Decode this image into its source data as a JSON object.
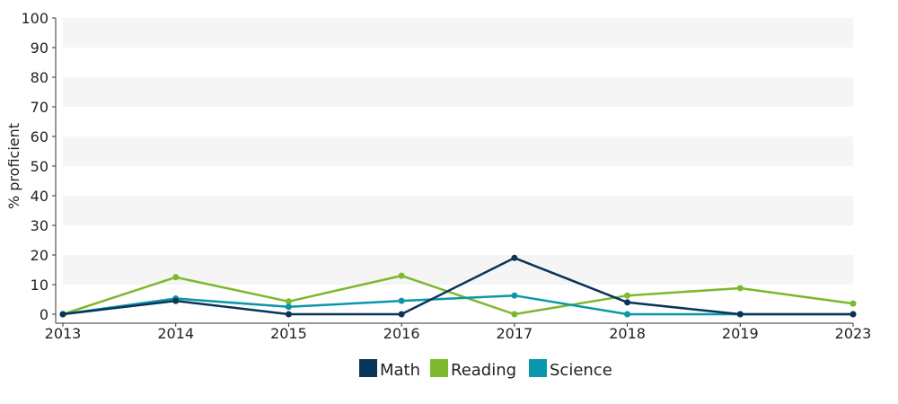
{
  "chart_data": {
    "type": "line",
    "title": "",
    "xlabel": "",
    "ylabel": "% proficient",
    "categories": [
      "2013",
      "2014",
      "2015",
      "2016",
      "2017",
      "2018",
      "2019",
      "2023"
    ],
    "ylim": [
      0,
      100
    ],
    "yticks": [
      0,
      10,
      20,
      30,
      40,
      50,
      60,
      70,
      80,
      90,
      100
    ],
    "grid": "alternating horizontal bands",
    "legend_position": "bottom-center",
    "series": [
      {
        "name": "Math",
        "color": "#0b3456",
        "values": [
          0,
          4.5,
          0,
          0,
          19,
          4,
          0,
          0
        ]
      },
      {
        "name": "Reading",
        "color": "#7cb92c",
        "values": [
          0,
          12.5,
          4.3,
          13,
          0,
          6.3,
          8.8,
          3.6
        ]
      },
      {
        "name": "Science",
        "color": "#0b96ab",
        "values": [
          0,
          5.3,
          2.5,
          4.5,
          6.3,
          0,
          0,
          0
        ]
      }
    ]
  }
}
